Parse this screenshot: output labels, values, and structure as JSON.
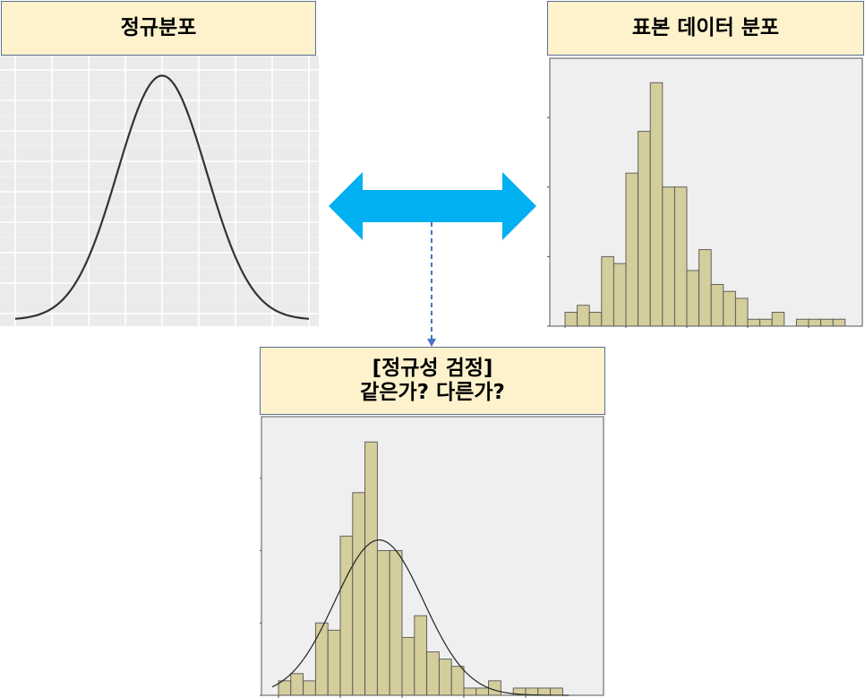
{
  "labels": {
    "normal": "정규분포",
    "sample": "표본 데이터 분포",
    "test_line1": "[정규성 검정]",
    "test_line2": "같은가? 다른가?"
  },
  "colors": {
    "label_fill": "#fdf2cc",
    "label_border": "#5b6f8f",
    "arrow": "#00b0f0",
    "dashed_connector": "#4472c4",
    "bar_fill": "#d4cd9c",
    "bar_stroke": "#555555",
    "plot_bg": "#efefef",
    "curve": "#333333"
  },
  "chart_data": [
    {
      "type": "line",
      "description_key": "normal-curve",
      "x": [
        -3,
        -2.5,
        -2,
        -1.5,
        -1,
        -0.5,
        0,
        0.5,
        1,
        1.5,
        2,
        2.5,
        3
      ],
      "y": [
        0.004,
        0.018,
        0.054,
        0.13,
        0.242,
        0.352,
        0.399,
        0.352,
        0.242,
        0.13,
        0.054,
        0.018,
        0.004
      ],
      "grid": true,
      "xlim": [
        -3.3,
        3.3
      ],
      "ylim": [
        0,
        0.42
      ]
    },
    {
      "type": "bar",
      "description_key": "sample-histogram",
      "values": [
        2,
        3,
        2,
        10,
        9,
        22,
        28,
        35,
        20,
        20,
        8,
        11,
        6,
        5,
        4,
        1,
        1,
        2,
        0,
        1,
        1,
        1,
        1
      ],
      "grid": false,
      "ylim": [
        0,
        38
      ]
    },
    {
      "type": "bar",
      "description_key": "sample-histogram-with-normal-fit",
      "values": [
        2,
        3,
        2,
        10,
        9,
        22,
        28,
        35,
        20,
        20,
        8,
        11,
        6,
        5,
        4,
        1,
        1,
        2,
        0,
        1,
        1,
        1,
        1
      ],
      "overlay": "normal-curve",
      "grid": false,
      "ylim": [
        0,
        38
      ]
    }
  ]
}
